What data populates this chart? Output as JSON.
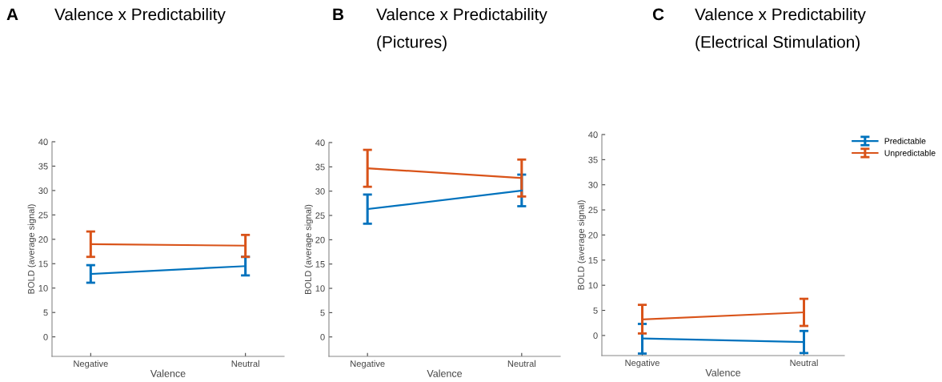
{
  "chart_data": [
    {
      "type": "line",
      "title": "Valence x Predictability",
      "annotations": [
        "A"
      ],
      "xlabel": "Valence",
      "ylabel": "BOLD (average signal)",
      "categories": [
        "Negative",
        "Neutral"
      ],
      "ylim": [
        -4,
        40
      ],
      "yticks": [
        0,
        5,
        10,
        15,
        20,
        25,
        30,
        35,
        40
      ],
      "legend": false,
      "series": [
        {
          "color": "#0072bd",
          "values": [
            12.9,
            14.5
          ],
          "errors": [
            [
              11.1,
              14.7
            ],
            [
              12.6,
              16.4
            ]
          ]
        },
        {
          "color": "#d95319",
          "values": [
            19.0,
            18.7
          ],
          "errors": [
            [
              16.4,
              21.6
            ],
            [
              16.4,
              20.9
            ]
          ]
        }
      ]
    },
    {
      "type": "line",
      "title": "Valence x Predictability\n(Pictures)",
      "annotations": [
        "B"
      ],
      "xlabel": "Valence",
      "ylabel": "BOLD (average signal)",
      "categories": [
        "Negative",
        "Neutral"
      ],
      "ylim": [
        -4,
        40
      ],
      "yticks": [
        0,
        5,
        10,
        15,
        20,
        25,
        30,
        35,
        40
      ],
      "legend": false,
      "series": [
        {
          "color": "#0072bd",
          "values": [
            26.3,
            30.1
          ],
          "errors": [
            [
              23.3,
              29.3
            ],
            [
              26.9,
              33.4
            ]
          ]
        },
        {
          "color": "#d95319",
          "values": [
            34.7,
            32.7
          ],
          "errors": [
            [
              30.9,
              38.5
            ],
            [
              28.9,
              36.5
            ]
          ]
        }
      ]
    },
    {
      "type": "line",
      "title": "Valence x Predictability\n(Electrical Stimulation)",
      "annotations": [
        "C"
      ],
      "xlabel": "Valence",
      "ylabel": "BOLD (average signal)",
      "categories": [
        "Negative",
        "Neutral"
      ],
      "ylim": [
        -4,
        40
      ],
      "yticks": [
        0,
        5,
        10,
        15,
        20,
        25,
        30,
        35,
        40
      ],
      "legend": "top right",
      "series": [
        {
          "name": "Predictable",
          "color": "#0072bd",
          "values": [
            -0.6,
            -1.3
          ],
          "errors": [
            [
              -3.6,
              2.3
            ],
            [
              -3.5,
              0.9
            ]
          ]
        },
        {
          "name": "Unpredictable",
          "color": "#d95319",
          "values": [
            3.2,
            4.6
          ],
          "errors": [
            [
              0.4,
              6.1
            ],
            [
              1.9,
              7.3
            ]
          ]
        }
      ]
    }
  ]
}
